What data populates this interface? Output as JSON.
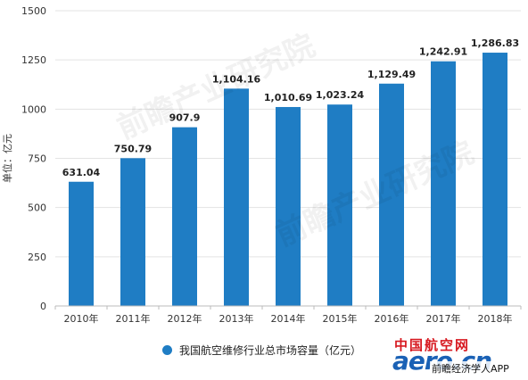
{
  "chart_data": {
    "type": "bar",
    "categories": [
      "2010年",
      "2011年",
      "2012年",
      "2013年",
      "2014年",
      "2015年",
      "2016年",
      "2017年",
      "2018年"
    ],
    "series": [
      {
        "name": "我国航空维修行业总市场容量（亿元）",
        "values": [
          631.04,
          750.79,
          907.9,
          1104.16,
          1010.69,
          1023.24,
          1129.49,
          1242.91,
          1286.83
        ],
        "labels": [
          "631.04",
          "750.79",
          "907.9",
          "1,104.16",
          "1,010.69",
          "1,023.24",
          "1,129.49",
          "1,242.91",
          "1,286.83"
        ]
      }
    ],
    "title": "",
    "xlabel": "",
    "ylabel": "单位：亿元",
    "ylim": [
      0,
      1500
    ],
    "yticks": [
      0,
      250,
      500,
      750,
      1000,
      1250,
      1500
    ],
    "grid": true,
    "legend_position": "bottom-center",
    "bar_color": "#1f7dc4"
  },
  "watermark": {
    "text": "前瞻产业研究院"
  },
  "brand": {
    "cn": "中国航空网",
    "en": "aero.cn",
    "app": "前瞻经济学人APP"
  }
}
